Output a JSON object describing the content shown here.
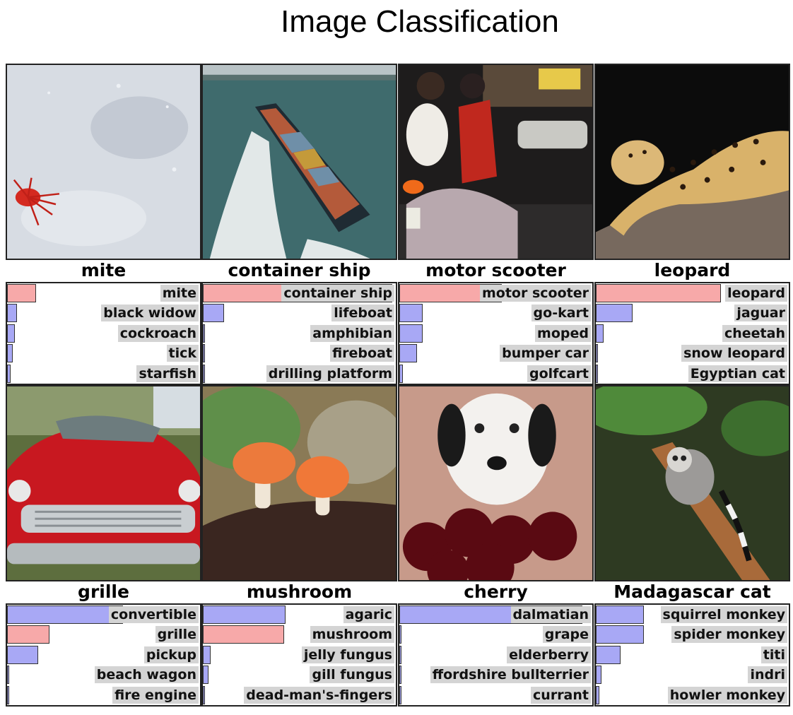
{
  "title": "Image Classification",
  "colors": {
    "correct_bar": "#f7a9a9",
    "other_bar": "#a8a8f5",
    "label_bg": "#d4d4d4"
  },
  "panels": [
    {
      "truth": "mite",
      "image": "red-mite-on-white-surface",
      "predictions": [
        {
          "label": "mite",
          "score": 0.15,
          "correct": true
        },
        {
          "label": "black widow",
          "score": 0.05,
          "correct": false
        },
        {
          "label": "cockroach",
          "score": 0.04,
          "correct": false
        },
        {
          "label": "tick",
          "score": 0.03,
          "correct": false
        },
        {
          "label": "starfish",
          "score": 0.02,
          "correct": false
        }
      ]
    },
    {
      "truth": "container ship",
      "image": "container-ship-at-sea",
      "predictions": [
        {
          "label": "container ship",
          "score": 0.98,
          "correct": true
        },
        {
          "label": "lifeboat",
          "score": 0.11,
          "correct": false
        },
        {
          "label": "amphibian",
          "score": 0.01,
          "correct": false
        },
        {
          "label": "fireboat",
          "score": 0.01,
          "correct": false
        },
        {
          "label": "drilling platform",
          "score": 0.01,
          "correct": false
        }
      ]
    },
    {
      "truth": "motor scooter",
      "image": "people-riding-scooter-at-night",
      "predictions": [
        {
          "label": "motor scooter",
          "score": 0.53,
          "correct": true
        },
        {
          "label": "go-kart",
          "score": 0.12,
          "correct": false
        },
        {
          "label": "moped",
          "score": 0.12,
          "correct": false
        },
        {
          "label": "bumper car",
          "score": 0.09,
          "correct": false
        },
        {
          "label": "golfcart",
          "score": 0.02,
          "correct": false
        }
      ]
    },
    {
      "truth": "leopard",
      "image": "leopard-on-tree-branch",
      "predictions": [
        {
          "label": "leopard",
          "score": 0.65,
          "correct": true
        },
        {
          "label": "jaguar",
          "score": 0.19,
          "correct": false
        },
        {
          "label": "cheetah",
          "score": 0.04,
          "correct": false
        },
        {
          "label": "snow leopard",
          "score": 0.01,
          "correct": false
        },
        {
          "label": "Egyptian cat",
          "score": 0.01,
          "correct": false
        }
      ]
    },
    {
      "truth": "grille",
      "image": "red-convertible-car-front",
      "predictions": [
        {
          "label": "convertible",
          "score": 0.6,
          "correct": false
        },
        {
          "label": "grille",
          "score": 0.22,
          "correct": true
        },
        {
          "label": "pickup",
          "score": 0.16,
          "correct": false
        },
        {
          "label": "beach wagon",
          "score": 0.01,
          "correct": false
        },
        {
          "label": "fire engine",
          "score": 0.01,
          "correct": false
        }
      ]
    },
    {
      "truth": "mushroom",
      "image": "two-orange-mushrooms",
      "predictions": [
        {
          "label": "agaric",
          "score": 0.43,
          "correct": false
        },
        {
          "label": "mushroom",
          "score": 0.42,
          "correct": true
        },
        {
          "label": "jelly fungus",
          "score": 0.04,
          "correct": false
        },
        {
          "label": "gill fungus",
          "score": 0.03,
          "correct": false
        },
        {
          "label": "dead-man's-fingers",
          "score": 0.01,
          "correct": false
        }
      ]
    },
    {
      "truth": "cherry",
      "image": "dalmatian-behind-cherries",
      "predictions": [
        {
          "label": "dalmatian",
          "score": 0.95,
          "correct": false
        },
        {
          "label": "grape",
          "score": 0.01,
          "correct": false
        },
        {
          "label": "elderberry",
          "score": 0.01,
          "correct": false
        },
        {
          "label": "ffordshire bullterrier",
          "score": 0.01,
          "correct": false
        },
        {
          "label": "currant",
          "score": 0.01,
          "correct": false
        }
      ]
    },
    {
      "truth": "Madagascar cat",
      "image": "ring-tailed-lemur-in-tree",
      "predictions": [
        {
          "label": "squirrel monkey",
          "score": 0.25,
          "correct": false
        },
        {
          "label": "spider monkey",
          "score": 0.25,
          "correct": false
        },
        {
          "label": "titi",
          "score": 0.13,
          "correct": false
        },
        {
          "label": "indri",
          "score": 0.03,
          "correct": false
        },
        {
          "label": "howler monkey",
          "score": 0.02,
          "correct": false
        }
      ]
    }
  ]
}
